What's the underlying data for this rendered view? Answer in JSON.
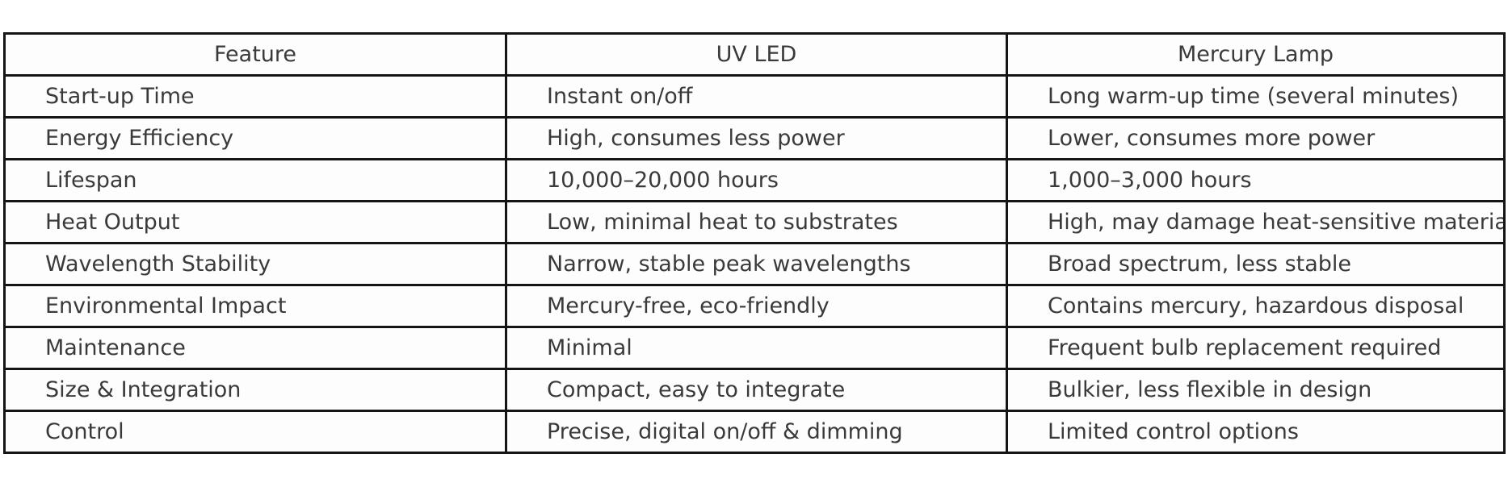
{
  "chart_data": {
    "type": "table",
    "columns": [
      "Feature",
      "UV LED",
      "Mercury Lamp"
    ],
    "rows": [
      [
        "Start-up Time",
        "Instant on/off",
        "Long warm-up time (several minutes)"
      ],
      [
        "Energy Efficiency",
        "High, consumes less power",
        "Lower, consumes more power"
      ],
      [
        "Lifespan",
        "10,000–20,000 hours",
        "1,000–3,000 hours"
      ],
      [
        "Heat Output",
        "Low, minimal heat to substrates",
        "High, may damage heat-sensitive materials"
      ],
      [
        "Wavelength Stability",
        "Narrow, stable peak wavelengths",
        "Broad spectrum, less stable"
      ],
      [
        "Environmental Impact",
        "Mercury-free, eco-friendly",
        "Contains mercury, hazardous disposal"
      ],
      [
        "Maintenance",
        "Minimal",
        "Frequent bulb replacement required"
      ],
      [
        "Size & Integration",
        "Compact, easy to integrate",
        "Bulkier, less flexible in design"
      ],
      [
        "Control",
        "Precise, digital on/off & dimming",
        "Limited control options"
      ]
    ],
    "layout_hints": {
      "header_align": "center",
      "cell_align": "left",
      "grid": "all-borders"
    }
  },
  "colors": {
    "border": "#141414",
    "text": "#3a3a3a",
    "cell_background": "#fdfdfd",
    "page_background": "#ffffff"
  }
}
